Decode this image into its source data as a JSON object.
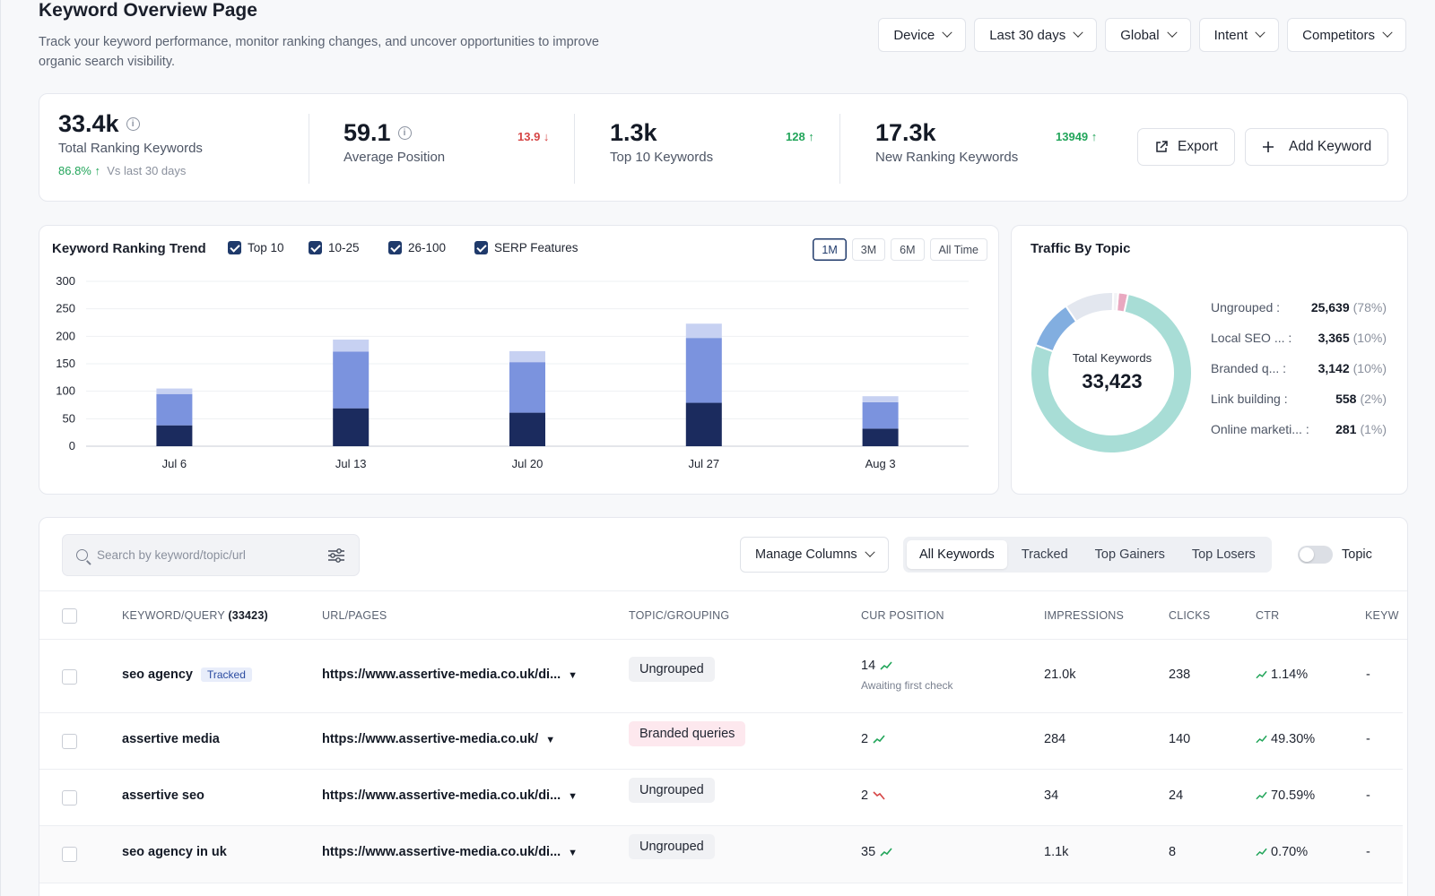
{
  "header": {
    "title": "Keyword Overview Page",
    "description": "Track your keyword performance, monitor ranking changes, and uncover opportunities to improve organic search visibility.",
    "filters": [
      "Device",
      "Last 30 days",
      "Global",
      "Intent",
      "Competitors"
    ]
  },
  "stats": {
    "total": {
      "value": "33.4k",
      "label": "Total Ranking Keywords",
      "change": "86.8% ↑",
      "compare": "Vs last 30 days"
    },
    "avg": {
      "value": "59.1",
      "label": "Average Position",
      "delta": "13.9 ↓"
    },
    "top10": {
      "value": "1.3k",
      "label": "Top 10 Keywords",
      "delta": "128 ↑"
    },
    "newk": {
      "value": "17.3k",
      "label": "New Ranking Keywords",
      "delta": "13949 ↑"
    },
    "export_label": "Export",
    "add_label": "Add Keyword"
  },
  "trend": {
    "title": "Keyword Ranking Trend",
    "legend": [
      "Top 10",
      "10-25",
      "26-100",
      "SERP Features"
    ],
    "ranges": [
      "1M",
      "3M",
      "6M",
      "All Time"
    ],
    "active_range": "1M"
  },
  "chart_data": {
    "type": "bar",
    "stacked": true,
    "categories": [
      "Jul 6",
      "Jul 13",
      "Jul 20",
      "Jul 27",
      "Aug 3"
    ],
    "series": [
      {
        "name": "Top 10",
        "color": "#1b2b5e",
        "values": [
          38,
          69,
          61,
          79,
          32
        ]
      },
      {
        "name": "10-25",
        "color": "#7b93de",
        "values": [
          57,
          103,
          92,
          118,
          48
        ]
      },
      {
        "name": "26-100",
        "color": "#c7d1f2",
        "values": [
          10,
          22,
          20,
          26,
          11
        ]
      }
    ],
    "yticks": [
      0,
      50,
      100,
      150,
      200,
      250,
      300
    ],
    "ylim": [
      0,
      300
    ],
    "grid": true
  },
  "topics": {
    "title": "Traffic By Topic",
    "center_label": "Total Keywords",
    "center_value": "33,423",
    "items": [
      {
        "name": "Ungrouped",
        "value": "25,639",
        "pct": "(78%)",
        "share": 78,
        "color": "#a8ddd6"
      },
      {
        "name": "Local SEO ...",
        "value": "3,365",
        "pct": "(10%)",
        "share": 10,
        "color": "#e3e7ef"
      },
      {
        "name": "Branded q...",
        "value": "3,142",
        "pct": "(10%)",
        "share": 10,
        "color": "#82aee0"
      },
      {
        "name": "Link building",
        "value": "558",
        "pct": "(2%)",
        "share": 2,
        "color": "#e9a8c0"
      },
      {
        "name": "Online marketi...",
        "value": "281",
        "pct": "(1%)",
        "share": 1,
        "color": "#f2f3f6"
      }
    ]
  },
  "table": {
    "search_placeholder": "Search by keyword/topic/url",
    "manage_columns": "Manage Columns",
    "tabs": [
      "All Keywords",
      "Tracked",
      "Top Gainers",
      "Top Losers"
    ],
    "toggle_label": "Topic",
    "headers": {
      "keyword": "KEYWORD/QUERY",
      "keyword_count": "(33423)",
      "url": "URL/PAGES",
      "topic": "TOPIC/GROUPING",
      "position": "CUR POSITION",
      "impressions": "IMPRESSIONS",
      "clicks": "CLICKS",
      "ctr": "CTR",
      "keyw": "KEYW"
    },
    "rows": [
      {
        "keyword": "seo agency",
        "badge": "Tracked",
        "url": "https://www.assertive-media.co.uk/di...",
        "topic": "Ungrouped",
        "position": "14",
        "trend": "up",
        "note": "Awaiting first check",
        "impressions": "21.0k",
        "clicks": "238",
        "ctr": "1.14%",
        "keyw": "-"
      },
      {
        "keyword": "assertive media",
        "badge": "",
        "url": "https://www.assertive-media.co.uk/",
        "topic": "Branded queries",
        "position": "2",
        "trend": "up",
        "note": "",
        "impressions": "284",
        "clicks": "140",
        "ctr": "49.30%",
        "keyw": "-"
      },
      {
        "keyword": "assertive seo",
        "badge": "",
        "url": "https://www.assertive-media.co.uk/di...",
        "topic": "Ungrouped",
        "position": "2",
        "trend": "down",
        "note": "",
        "impressions": "34",
        "clicks": "24",
        "ctr": "70.59%",
        "keyw": "-"
      },
      {
        "keyword": "seo agency in uk",
        "badge": "",
        "url": "https://www.assertive-media.co.uk/di...",
        "topic": "Ungrouped",
        "position": "35",
        "trend": "up",
        "note": "",
        "impressions": "1.1k",
        "clicks": "8",
        "ctr": "0.70%",
        "keyw": "-"
      }
    ]
  }
}
